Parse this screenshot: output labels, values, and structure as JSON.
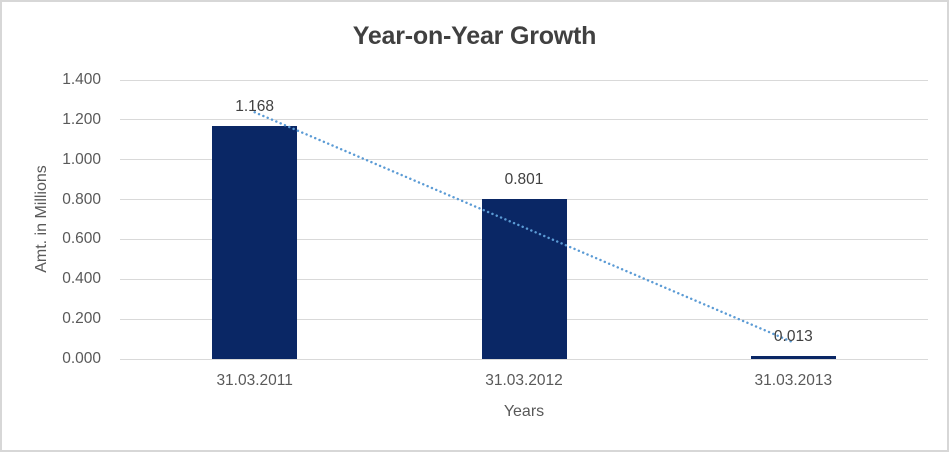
{
  "chart_data": {
    "type": "bar",
    "title": "Year-on-Year Growth",
    "xlabel": "Years",
    "ylabel": "Amt. in Millions",
    "categories": [
      "31.03.2011",
      "31.03.2012",
      "31.03.2013"
    ],
    "values": [
      1.168,
      0.801,
      0.013
    ],
    "data_labels": [
      "1.168",
      "0.801",
      "0.013"
    ],
    "yticks": [
      "0.000",
      "0.200",
      "0.400",
      "0.600",
      "0.800",
      "1.000",
      "1.200",
      "1.400"
    ],
    "ylim": [
      0,
      1.4
    ],
    "grid": true,
    "legend": false,
    "trendline": {
      "type": "linear",
      "style": "dotted"
    }
  },
  "colors": {
    "bar": "#0a2765",
    "trendline": "#5b9bd5",
    "gridline": "#d9d9d9",
    "title_text": "#404040",
    "axis_text": "#595959",
    "data_label_text": "#404040",
    "border": "#d7d7d7",
    "background": "#ffffff"
  }
}
